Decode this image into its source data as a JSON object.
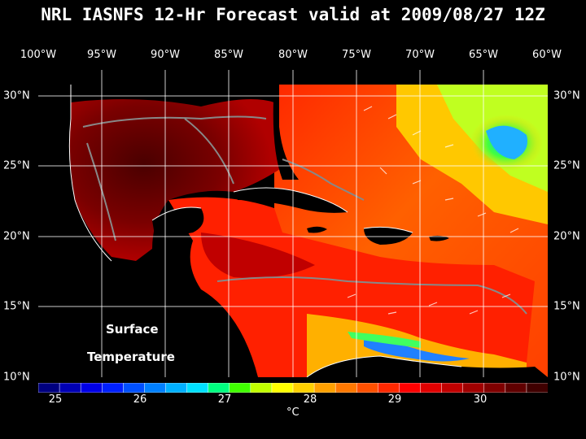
{
  "title": "NRL IASNFS  12-Hr Forecast valid at 2009/08/27 12Z",
  "lon_labels": [
    "100°W",
    "95°W",
    "90°W",
    "85°W",
    "80°W",
    "75°W",
    "70°W",
    "65°W",
    "60°W"
  ],
  "lat_labels": [
    "30°N",
    "25°N",
    "20°N",
    "15°N",
    "10°N"
  ],
  "overlay": {
    "line1": "Surface",
    "line2": "Temperature"
  },
  "colorbar": {
    "ticks": [
      "25",
      "26",
      "27",
      "28",
      "29",
      "30"
    ],
    "unit": "°C",
    "colors": [
      "#000080",
      "#0000b4",
      "#0000e6",
      "#0020ff",
      "#0050ff",
      "#0080ff",
      "#00b0ff",
      "#00e0ff",
      "#00ff80",
      "#40ff00",
      "#c0ff00",
      "#ffff00",
      "#ffd000",
      "#ffa000",
      "#ff7800",
      "#ff5000",
      "#ff2800",
      "#ff0000",
      "#e00000",
      "#c00000",
      "#a00000",
      "#800000",
      "#600000",
      "#400000"
    ]
  },
  "colors": {
    "background": "#000000",
    "land": "#000000",
    "text": "#ffffff"
  }
}
